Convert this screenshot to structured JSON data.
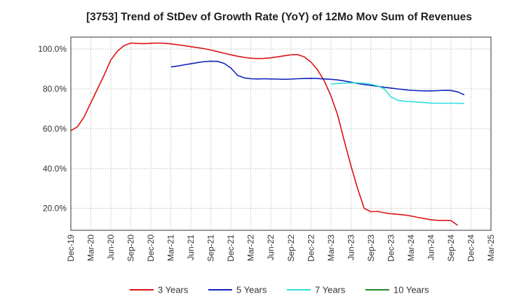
{
  "chart_data": {
    "type": "line",
    "title": "[3753]  Trend of StDev of Growth Rate (YoY) of 12Mo Mov Sum of Revenues",
    "xlabel": "",
    "ylabel": "",
    "ylim": [
      9,
      106
    ],
    "x_ticks": [
      "Dec-19",
      "Mar-20",
      "Jun-20",
      "Sep-20",
      "Dec-20",
      "Mar-21",
      "Jun-21",
      "Sep-21",
      "Dec-21",
      "Mar-22",
      "Jun-22",
      "Sep-22",
      "Dec-22",
      "Mar-23",
      "Jun-23",
      "Sep-23",
      "Dec-23",
      "Mar-24",
      "Jun-24",
      "Sep-24",
      "Dec-24",
      "Mar-25"
    ],
    "y_ticks": [
      {
        "value": 20,
        "label": "20.0%"
      },
      {
        "value": 40,
        "label": "40.0%"
      },
      {
        "value": 60,
        "label": "60.0%"
      },
      {
        "value": 80,
        "label": "80.0%"
      },
      {
        "value": 100,
        "label": "100.0%"
      }
    ],
    "grid": true,
    "legend_position": "bottom",
    "series": [
      {
        "name": "3 Years",
        "color": "#dd1111",
        "points": [
          [
            0,
            59
          ],
          [
            1,
            61
          ],
          [
            2,
            66
          ],
          [
            3,
            73
          ],
          [
            4,
            80
          ],
          [
            5,
            87
          ],
          [
            6,
            94.5
          ],
          [
            7,
            99
          ],
          [
            8,
            101.8
          ],
          [
            9,
            103
          ],
          [
            10,
            102.8
          ],
          [
            11,
            102.7
          ],
          [
            12,
            102.9
          ],
          [
            13,
            103
          ],
          [
            14,
            102.9
          ],
          [
            15,
            102.6
          ],
          [
            16,
            102.2
          ],
          [
            17,
            101.7
          ],
          [
            18,
            101.2
          ],
          [
            19,
            100.7
          ],
          [
            20,
            100.2
          ],
          [
            21,
            99.5
          ],
          [
            22,
            98.7
          ],
          [
            23,
            97.9
          ],
          [
            24,
            97.1
          ],
          [
            25,
            96.4
          ],
          [
            26,
            95.8
          ],
          [
            27,
            95.4
          ],
          [
            28,
            95.2
          ],
          [
            29,
            95.3
          ],
          [
            30,
            95.6
          ],
          [
            31,
            96.1
          ],
          [
            32,
            96.6
          ],
          [
            33,
            97.1
          ],
          [
            34,
            97.2
          ],
          [
            35,
            96.1
          ],
          [
            36,
            93.5
          ],
          [
            37,
            89.5
          ],
          [
            38,
            84
          ],
          [
            39,
            76.5
          ],
          [
            40,
            67
          ],
          [
            41,
            54
          ],
          [
            42,
            41.5
          ],
          [
            43,
            30
          ],
          [
            44,
            20
          ],
          [
            45,
            18.3
          ],
          [
            46,
            18.5
          ],
          [
            47,
            17.8
          ],
          [
            48,
            17.3
          ],
          [
            49,
            17
          ],
          [
            50,
            16.7
          ],
          [
            51,
            16.2
          ],
          [
            52,
            15.5
          ],
          [
            53,
            14.9
          ],
          [
            54,
            14.3
          ],
          [
            55,
            14
          ],
          [
            56,
            14
          ],
          [
            57,
            13.9
          ],
          [
            58,
            11.5
          ]
        ]
      },
      {
        "name": "5 Years",
        "color": "#1122bb",
        "points": [
          [
            15,
            91
          ],
          [
            16,
            91.5
          ],
          [
            17,
            92.1
          ],
          [
            18,
            92.6
          ],
          [
            19,
            93.2
          ],
          [
            20,
            93.7
          ],
          [
            21,
            93.9
          ],
          [
            22,
            93.8
          ],
          [
            23,
            92.8
          ],
          [
            24,
            90.5
          ],
          [
            25,
            86.8
          ],
          [
            26,
            85.5
          ],
          [
            27,
            85.1
          ],
          [
            28,
            85
          ],
          [
            29,
            85.1
          ],
          [
            30,
            85
          ],
          [
            31,
            84.9
          ],
          [
            32,
            84.8
          ],
          [
            33,
            84.9
          ],
          [
            34,
            85.1
          ],
          [
            35,
            85.2
          ],
          [
            36,
            85.3
          ],
          [
            37,
            85.2
          ],
          [
            38,
            85
          ],
          [
            39,
            84.8
          ],
          [
            40,
            84.5
          ],
          [
            41,
            84
          ],
          [
            42,
            83.4
          ],
          [
            43,
            82.7
          ],
          [
            44,
            82.2
          ],
          [
            45,
            81.8
          ],
          [
            46,
            81.3
          ],
          [
            47,
            80.8
          ],
          [
            48,
            80.4
          ],
          [
            49,
            80
          ],
          [
            50,
            79.6
          ],
          [
            51,
            79.3
          ],
          [
            52,
            79.1
          ],
          [
            53,
            79
          ],
          [
            54,
            79
          ],
          [
            55,
            79.1
          ],
          [
            56,
            79.3
          ],
          [
            57,
            79.2
          ],
          [
            58,
            78.5
          ],
          [
            59,
            77
          ]
        ]
      },
      {
        "name": "7 Years",
        "color": "#33dddd",
        "points": [
          [
            39,
            82.5
          ],
          [
            40,
            82.7
          ],
          [
            41,
            82.9
          ],
          [
            42,
            83
          ],
          [
            43,
            83
          ],
          [
            44,
            82.8
          ],
          [
            45,
            82.3
          ],
          [
            46,
            81.5
          ],
          [
            47,
            80
          ],
          [
            48,
            76
          ],
          [
            49,
            74.3
          ],
          [
            50,
            73.8
          ],
          [
            51,
            73.6
          ],
          [
            52,
            73.4
          ],
          [
            53,
            73.1
          ],
          [
            54,
            72.9
          ],
          [
            55,
            72.8
          ],
          [
            56,
            72.8
          ],
          [
            57,
            72.8
          ],
          [
            58,
            72.8
          ],
          [
            59,
            72.7
          ]
        ]
      },
      {
        "name": "10 Years",
        "color": "#228822",
        "points": []
      }
    ]
  }
}
